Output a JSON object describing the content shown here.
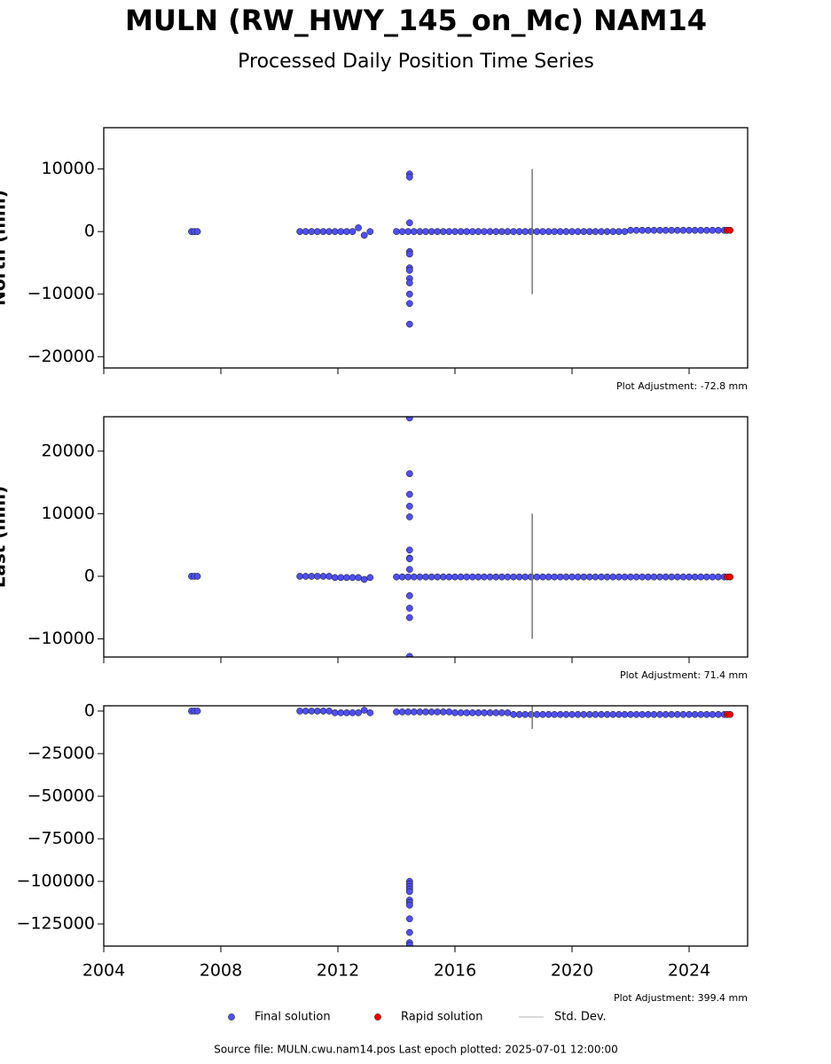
{
  "title": "MULN (RW_HWY_145_on_Mc) NAM14",
  "subtitle": "Processed Daily Position Time Series",
  "footer": "Source file: MULN.cwu.nam14.pos  Last epoch plotted: 2025-07-01 12:00:00",
  "chart_data": [
    {
      "type": "scatter",
      "ylabel": "North (mm)",
      "annotation": "Plot Adjustment: -72.8 mm",
      "xlim": [
        2004,
        2026
      ],
      "xticks": [
        2004,
        2008,
        2012,
        2016,
        2020,
        2024
      ],
      "ylim": [
        -21800,
        16600
      ],
      "yticks": [
        {
          "value": -20000,
          "label": "−20000"
        },
        {
          "value": -10000,
          "label": "−10000"
        },
        0,
        10000
      ],
      "series": [
        {
          "name": "Final solution",
          "color": "#4f4ff0",
          "x": [
            2007.0,
            2007.1,
            2007.2,
            2010.7,
            2010.9,
            2011.1,
            2011.3,
            2011.5,
            2011.7,
            2011.9,
            2012.1,
            2012.3,
            2012.5,
            2012.7,
            2012.9,
            2013.1,
            2014.0,
            2014.2,
            2014.4,
            2014.6,
            2014.8,
            2015.0,
            2015.2,
            2015.4,
            2015.6,
            2015.8,
            2016.0,
            2016.2,
            2016.4,
            2016.6,
            2016.8,
            2017.0,
            2017.2,
            2017.4,
            2017.6,
            2017.8,
            2018.0,
            2018.2,
            2018.4,
            2018.6,
            2018.8,
            2019.0,
            2019.2,
            2019.4,
            2019.6,
            2019.8,
            2020.0,
            2020.2,
            2020.4,
            2020.6,
            2020.8,
            2021.0,
            2021.2,
            2021.4,
            2021.6,
            2021.8,
            2022.0,
            2022.2,
            2022.4,
            2022.6,
            2022.8,
            2023.0,
            2023.2,
            2023.4,
            2023.6,
            2023.8,
            2024.0,
            2024.2,
            2024.4,
            2024.6,
            2024.8,
            2025.0,
            2025.2,
            2014.45,
            2014.45,
            2014.45,
            2014.45,
            2014.45,
            2014.45,
            2014.45,
            2014.45,
            2014.45,
            2014.45,
            2014.45,
            2014.45
          ],
          "values": [
            0,
            0,
            0,
            0,
            0,
            0,
            0,
            0,
            0,
            0,
            0,
            0,
            0,
            600,
            -600,
            0,
            0,
            0,
            0,
            0,
            0,
            0,
            0,
            0,
            0,
            0,
            0,
            0,
            0,
            0,
            0,
            0,
            0,
            0,
            0,
            0,
            0,
            0,
            0,
            0,
            0,
            0,
            0,
            0,
            0,
            0,
            0,
            0,
            0,
            0,
            0,
            0,
            0,
            0,
            0,
            0,
            200,
            200,
            200,
            200,
            200,
            200,
            200,
            200,
            200,
            200,
            200,
            200,
            200,
            200,
            200,
            200,
            200,
            9200,
            8700,
            1400,
            -3200,
            -3600,
            -5800,
            -6200,
            -7500,
            -8200,
            -10000,
            -11500,
            -14800
          ]
        },
        {
          "name": "Rapid solution",
          "color": "#ee0000",
          "x": [
            2025.3,
            2025.4
          ],
          "values": [
            200,
            200
          ]
        },
        {
          "name": "Std. Dev.",
          "color": "#777777",
          "x": [
            2018.64
          ],
          "values": [
            0
          ],
          "errors": [
            10000
          ]
        }
      ]
    },
    {
      "type": "scatter",
      "ylabel": "East (mm)",
      "annotation": "Plot Adjustment: 71.4 mm",
      "xlim": [
        2004,
        2026
      ],
      "xticks": [
        2004,
        2008,
        2012,
        2016,
        2020,
        2024
      ],
      "ylim": [
        -12900,
        25500
      ],
      "yticks": [
        {
          "value": -10000,
          "label": "−10000"
        },
        0,
        10000,
        20000
      ],
      "series": [
        {
          "color": "#4f4ff0",
          "x": [
            2007.0,
            2007.1,
            2007.2,
            2010.7,
            2010.9,
            2011.1,
            2011.3,
            2011.5,
            2011.7,
            2011.9,
            2012.1,
            2012.3,
            2012.5,
            2012.7,
            2012.9,
            2013.1,
            2014.0,
            2014.2,
            2014.4,
            2014.6,
            2014.8,
            2015.0,
            2015.2,
            2015.4,
            2015.6,
            2015.8,
            2016.0,
            2016.2,
            2016.4,
            2016.6,
            2016.8,
            2017.0,
            2017.2,
            2017.4,
            2017.6,
            2017.8,
            2018.0,
            2018.2,
            2018.4,
            2018.6,
            2018.8,
            2019.0,
            2019.2,
            2019.4,
            2019.6,
            2019.8,
            2020.0,
            2020.2,
            2020.4,
            2020.6,
            2020.8,
            2021.0,
            2021.2,
            2021.4,
            2021.6,
            2021.8,
            2022.0,
            2022.2,
            2022.4,
            2022.6,
            2022.8,
            2023.0,
            2023.2,
            2023.4,
            2023.6,
            2023.8,
            2024.0,
            2024.2,
            2024.4,
            2024.6,
            2024.8,
            2025.0,
            2025.2,
            2014.45,
            2014.45,
            2014.45,
            2014.45,
            2014.45,
            2014.45,
            2014.45,
            2014.45,
            2014.45,
            2014.45,
            2014.45,
            2014.45,
            2014.45
          ],
          "values": [
            0,
            0,
            0,
            0,
            0,
            0,
            0,
            0,
            0,
            -200,
            -200,
            -200,
            -200,
            -200,
            -500,
            -200,
            -100,
            -100,
            -100,
            -100,
            -100,
            -100,
            -100,
            -100,
            -100,
            -100,
            -100,
            -100,
            -100,
            -100,
            -100,
            -100,
            -100,
            -100,
            -100,
            -100,
            -100,
            -100,
            -100,
            -100,
            -100,
            -100,
            -100,
            -100,
            -100,
            -100,
            -100,
            -100,
            -100,
            -100,
            -100,
            -100,
            -100,
            -100,
            -100,
            -100,
            -100,
            -100,
            -100,
            -100,
            -100,
            -100,
            -100,
            -100,
            -100,
            -100,
            -100,
            -100,
            -100,
            -100,
            -100,
            -100,
            -100,
            25300,
            16400,
            13100,
            11200,
            9500,
            4200,
            2900,
            2800,
            1100,
            -3100,
            -5100,
            -6600,
            -12800
          ]
        },
        {
          "color": "#ee0000",
          "x": [
            2025.3,
            2025.4
          ],
          "values": [
            -100,
            -100
          ]
        },
        {
          "color": "#777777",
          "x": [
            2018.64
          ],
          "values": [
            0
          ],
          "errors": [
            10000
          ]
        }
      ]
    },
    {
      "type": "scatter",
      "annotation": "Plot Adjustment: 399.4 mm",
      "xlim": [
        2004,
        2026
      ],
      "xticks": [
        2004,
        2008,
        2012,
        2016,
        2020,
        2024
      ],
      "ylim": [
        -138000,
        3100
      ],
      "yticks": [
        {
          "value": -125000,
          "label": "−125000"
        },
        {
          "value": -100000,
          "label": "−100000"
        },
        {
          "value": -75000,
          "label": "−75000"
        },
        {
          "value": -50000,
          "label": "−50000"
        },
        {
          "value": -25000,
          "label": "−25000"
        },
        0
      ],
      "series": [
        {
          "color": "#4f4ff0",
          "x": [
            2007.0,
            2007.1,
            2007.2,
            2010.7,
            2010.9,
            2011.1,
            2011.3,
            2011.5,
            2011.7,
            2011.9,
            2012.1,
            2012.3,
            2012.5,
            2012.7,
            2012.9,
            2013.1,
            2014.0,
            2014.2,
            2014.4,
            2014.6,
            2014.8,
            2015.0,
            2015.2,
            2015.4,
            2015.6,
            2015.8,
            2016.0,
            2016.2,
            2016.4,
            2016.6,
            2016.8,
            2017.0,
            2017.2,
            2017.4,
            2017.6,
            2017.8,
            2018.0,
            2018.2,
            2018.4,
            2018.6,
            2018.8,
            2019.0,
            2019.2,
            2019.4,
            2019.6,
            2019.8,
            2020.0,
            2020.2,
            2020.4,
            2020.6,
            2020.8,
            2021.0,
            2021.2,
            2021.4,
            2021.6,
            2021.8,
            2022.0,
            2022.2,
            2022.4,
            2022.6,
            2022.8,
            2023.0,
            2023.2,
            2023.4,
            2023.6,
            2023.8,
            2024.0,
            2024.2,
            2024.4,
            2024.6,
            2024.8,
            2025.0,
            2025.2,
            2014.45,
            2014.45,
            2014.45,
            2014.45,
            2014.45,
            2014.45,
            2014.45,
            2014.45,
            2014.45,
            2014.45,
            2014.45,
            2014.45
          ],
          "values": [
            0,
            0,
            0,
            0,
            0,
            0,
            0,
            0,
            0,
            -1000,
            -1000,
            -1000,
            -1000,
            -1000,
            500,
            -1000,
            -500,
            -500,
            -500,
            -500,
            -500,
            -500,
            -500,
            -500,
            -500,
            -500,
            -1000,
            -1000,
            -1000,
            -1000,
            -1000,
            -1000,
            -1000,
            -1000,
            -1000,
            -1000,
            -2000,
            -2000,
            -2000,
            -2000,
            -2000,
            -2000,
            -2000,
            -2000,
            -2000,
            -2000,
            -2000,
            -2000,
            -2000,
            -2000,
            -2000,
            -2000,
            -2000,
            -2000,
            -2000,
            -2000,
            -2000,
            -2000,
            -2000,
            -2000,
            -2000,
            -2000,
            -2000,
            -2000,
            -2000,
            -2000,
            -2000,
            -2000,
            -2000,
            -2000,
            -2000,
            -2000,
            -2000,
            -100000,
            -101500,
            -103000,
            -104500,
            -106000,
            -111000,
            -112500,
            -114000,
            -122000,
            -130000,
            -136000,
            -137500
          ]
        },
        {
          "color": "#ee0000",
          "x": [
            2025.3,
            2025.4
          ],
          "values": [
            -2000,
            -2000
          ]
        },
        {
          "color": "#777777",
          "x": [
            2018.64
          ],
          "values": [
            -1500
          ],
          "errors": [
            9000
          ]
        }
      ]
    }
  ]
}
